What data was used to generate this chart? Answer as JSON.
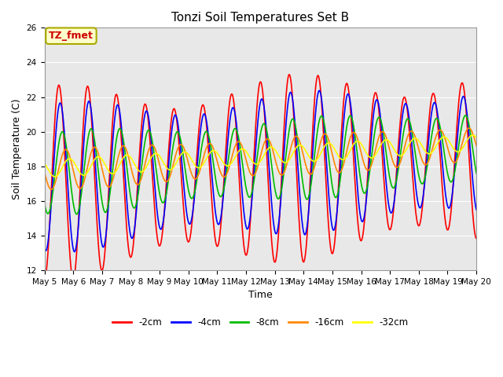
{
  "title": "Tonzi Soil Temperatures Set B",
  "xlabel": "Time",
  "ylabel": "Soil Temperature (C)",
  "ylim": [
    12,
    26
  ],
  "xlim": [
    0,
    15
  ],
  "x_tick_labels": [
    "May 5",
    "May 6",
    "May 7",
    "May 8",
    "May 9",
    "May 10",
    "May 11",
    "May 12",
    "May 13",
    "May 14",
    "May 15",
    "May 16",
    "May 17",
    "May 18",
    "May 19",
    "May 20"
  ],
  "series_labels": [
    "-2cm",
    "-4cm",
    "-8cm",
    "-16cm",
    "-32cm"
  ],
  "series_colors": [
    "#ff0000",
    "#0000ff",
    "#00bb00",
    "#ff8800",
    "#ffff00"
  ],
  "annotation_text": "TZ_fmet",
  "annotation_color": "#cc0000",
  "annotation_bg": "#ffffcc",
  "annotation_border": "#aaaa00",
  "plot_bg": "#e8e8e8",
  "title_fontsize": 11,
  "axis_label_fontsize": 9,
  "tick_fontsize": 7.5,
  "figwidth": 6.4,
  "figheight": 4.8,
  "dpi": 100
}
